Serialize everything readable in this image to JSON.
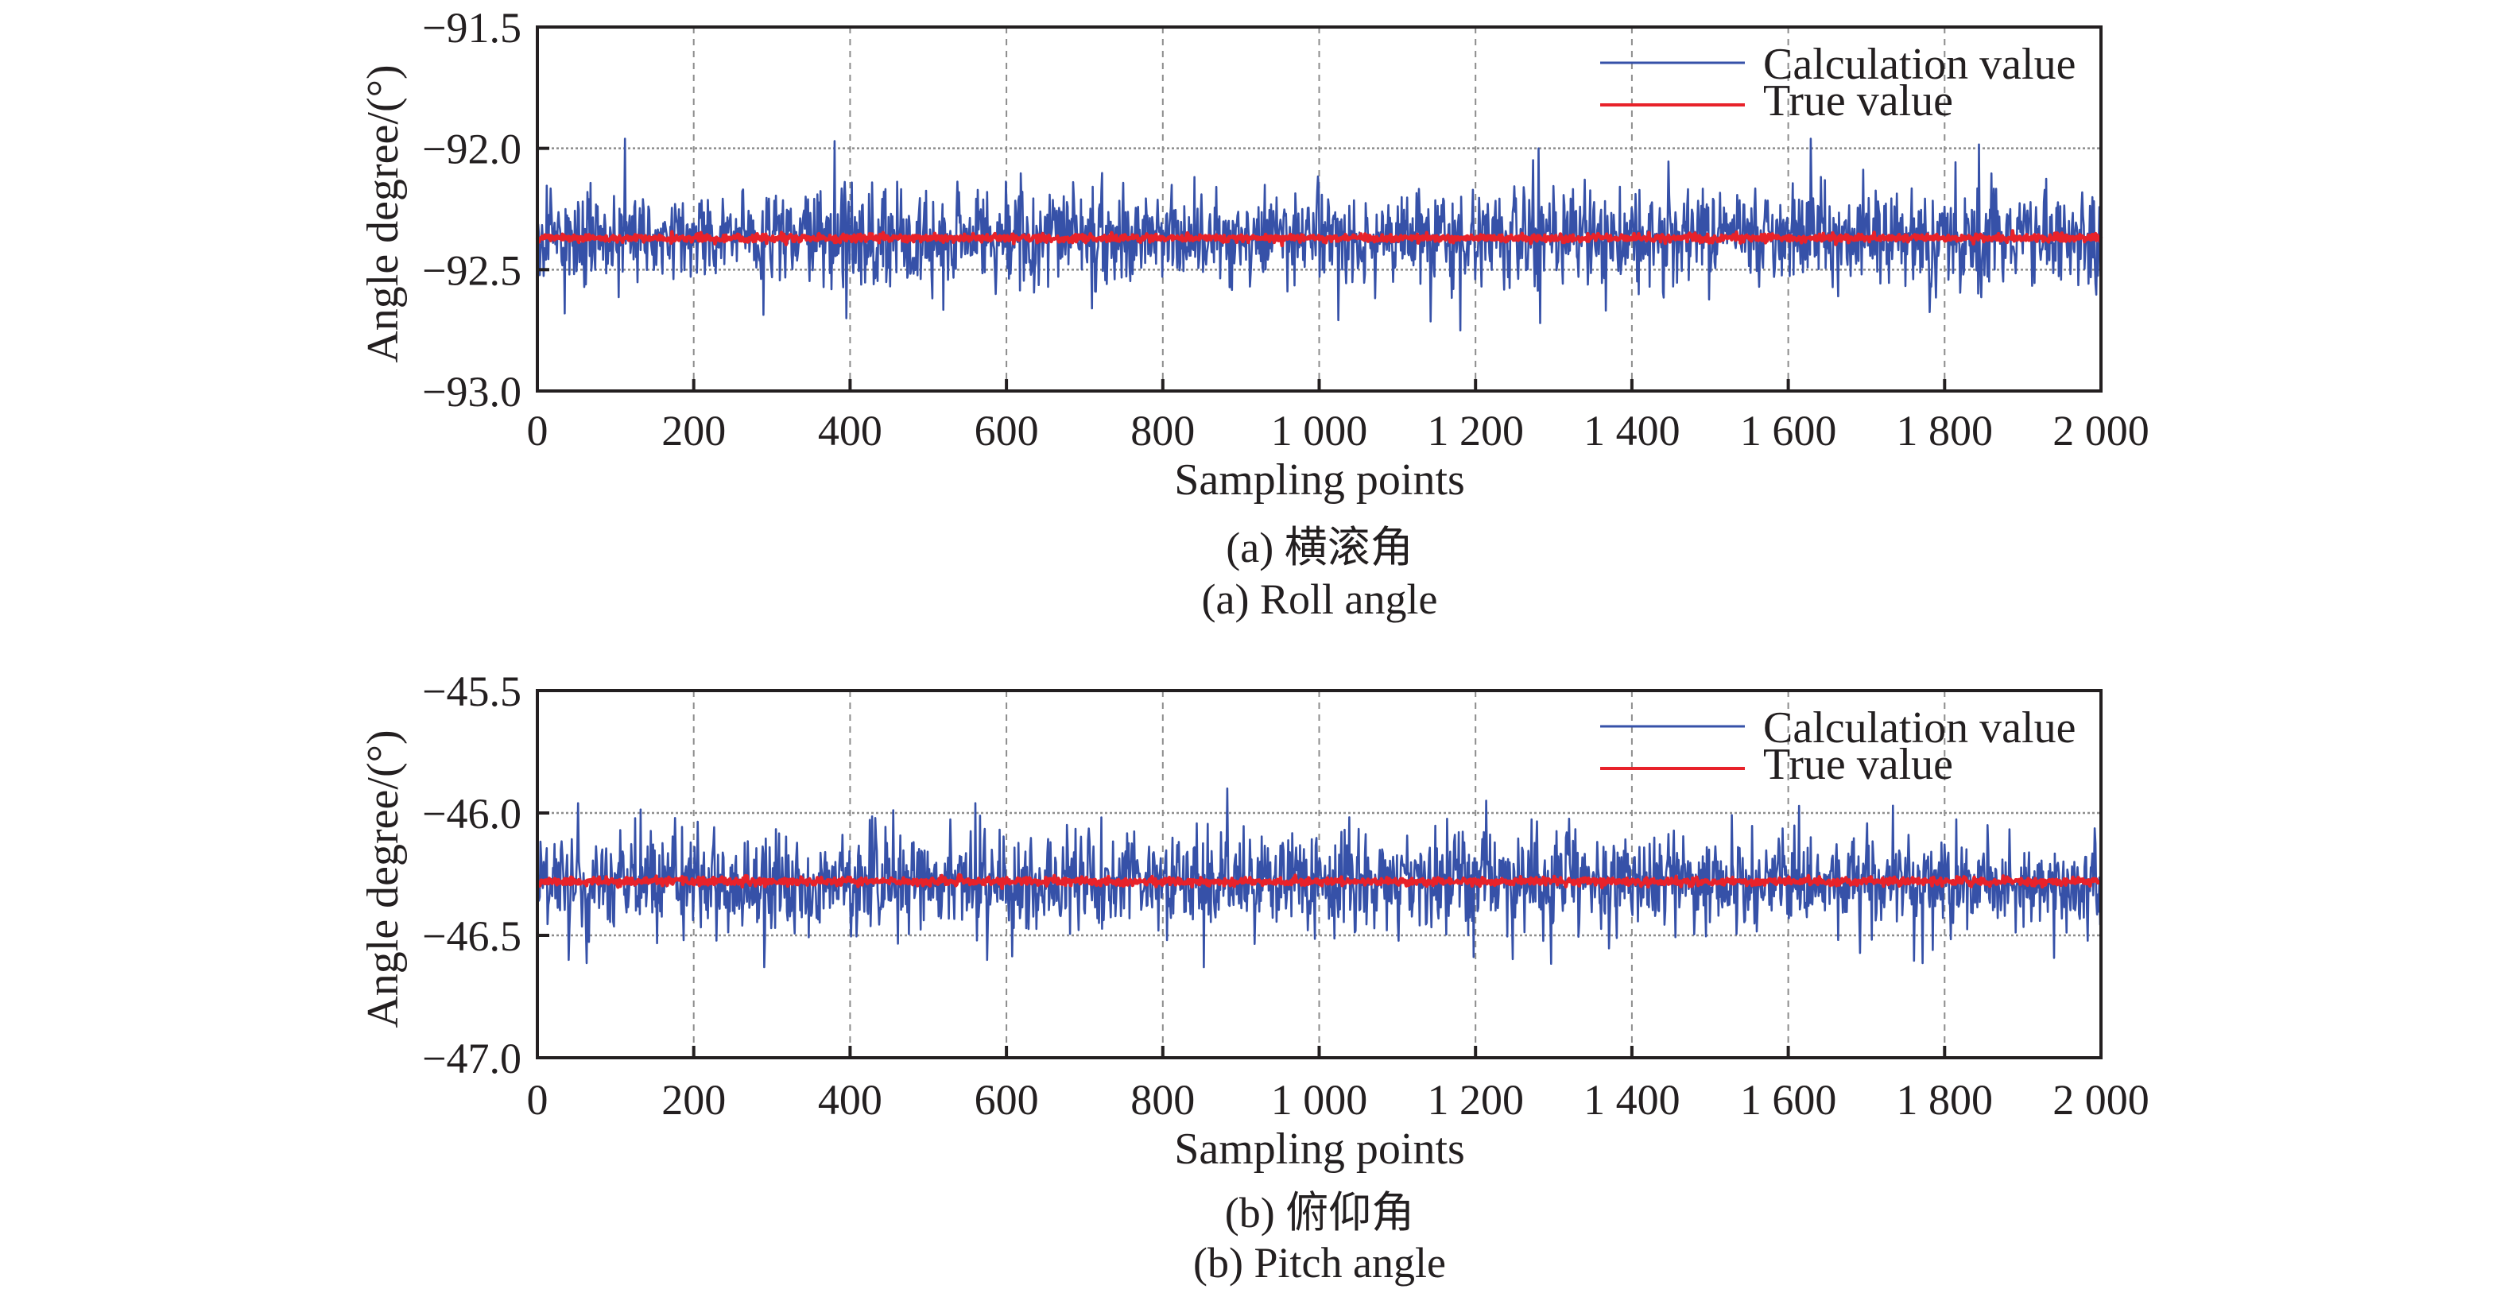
{
  "figure": {
    "captions": [
      {
        "cn": "(a) 横滚角",
        "en": "(a) Roll angle"
      },
      {
        "cn": "(b) 俯仰角",
        "en": "(b) Pitch angle"
      }
    ]
  },
  "colors": {
    "calculation": "#3651a8",
    "true": "#e8222a",
    "axis": "#231f20",
    "grid": "#8c8c8c"
  },
  "chart_data": [
    {
      "type": "line",
      "title": "(a) Roll angle",
      "title_cn": "(a) 横滚角",
      "xlabel": "Sampling points",
      "ylabel": "Angle degree/(°)",
      "xlim": [
        0,
        2000
      ],
      "ylim": [
        -93.0,
        -91.5
      ],
      "xticks": [
        0,
        200,
        400,
        600,
        800,
        1000,
        1200,
        1400,
        1600,
        1800,
        2000
      ],
      "xtick_labels": [
        "0",
        "200",
        "400",
        "600",
        "800",
        "1 000",
        "1 200",
        "1 400",
        "1 600",
        "1 800",
        "2 000"
      ],
      "yticks": [
        -93.0,
        -92.5,
        -92.0,
        -91.5
      ],
      "ytick_labels": [
        "−93.0",
        "−92.5",
        "−92.0",
        "−91.5"
      ],
      "grid": true,
      "legend_position": "top-right",
      "series": [
        {
          "name": "Calculation value",
          "n_points": 2000,
          "mean": -92.37,
          "std": 0.1,
          "seed": 17,
          "approx_max": -91.96,
          "approx_min": -92.75,
          "notable_points": [
            {
              "x": 112,
              "y": -91.96
            },
            {
              "x": 380,
              "y": -91.97
            },
            {
              "x": 1280,
              "y": -92.0
            },
            {
              "x": 1628,
              "y": -91.96
            },
            {
              "x": 1180,
              "y": -92.75
            },
            {
              "x": 1282,
              "y": -92.72
            },
            {
              "x": 395,
              "y": -92.7
            },
            {
              "x": 35,
              "y": -92.68
            }
          ]
        },
        {
          "name": "True value",
          "n_points": 2000,
          "mean": -92.37,
          "std": 0.008,
          "seed": 5
        }
      ]
    },
    {
      "type": "line",
      "title": "(b) Pitch angle",
      "title_cn": "(b) 俯仰角",
      "xlabel": "Sampling points",
      "ylabel": "Angle degree/(°)",
      "xlim": [
        0,
        2000
      ],
      "ylim": [
        -47.0,
        -45.5
      ],
      "xticks": [
        0,
        200,
        400,
        600,
        800,
        1000,
        1200,
        1400,
        1600,
        1800,
        2000
      ],
      "xtick_labels": [
        "0",
        "200",
        "400",
        "600",
        "800",
        "1 000",
        "1 200",
        "1 400",
        "1 600",
        "1 800",
        "2 000"
      ],
      "yticks": [
        -47.0,
        -46.5,
        -46.0,
        -45.5
      ],
      "ytick_labels": [
        "−47.0",
        "−46.5",
        "−46.0",
        "−45.5"
      ],
      "grid": true,
      "legend_position": "top-right",
      "series": [
        {
          "name": "Calculation value",
          "n_points": 2000,
          "mean": -46.28,
          "std": 0.1,
          "seed": 29,
          "approx_max": -45.9,
          "approx_min": -46.63,
          "notable_points": [
            {
              "x": 882,
              "y": -45.9
            },
            {
              "x": 52,
              "y": -45.96
            },
            {
              "x": 560,
              "y": -45.96
            },
            {
              "x": 1213,
              "y": -45.95
            },
            {
              "x": 1733,
              "y": -45.97
            },
            {
              "x": 290,
              "y": -46.63
            },
            {
              "x": 852,
              "y": -46.63
            },
            {
              "x": 575,
              "y": -46.6
            },
            {
              "x": 40,
              "y": -46.6
            }
          ]
        },
        {
          "name": "True value",
          "n_points": 2000,
          "mean": -46.28,
          "std": 0.008,
          "seed": 11
        }
      ]
    }
  ]
}
